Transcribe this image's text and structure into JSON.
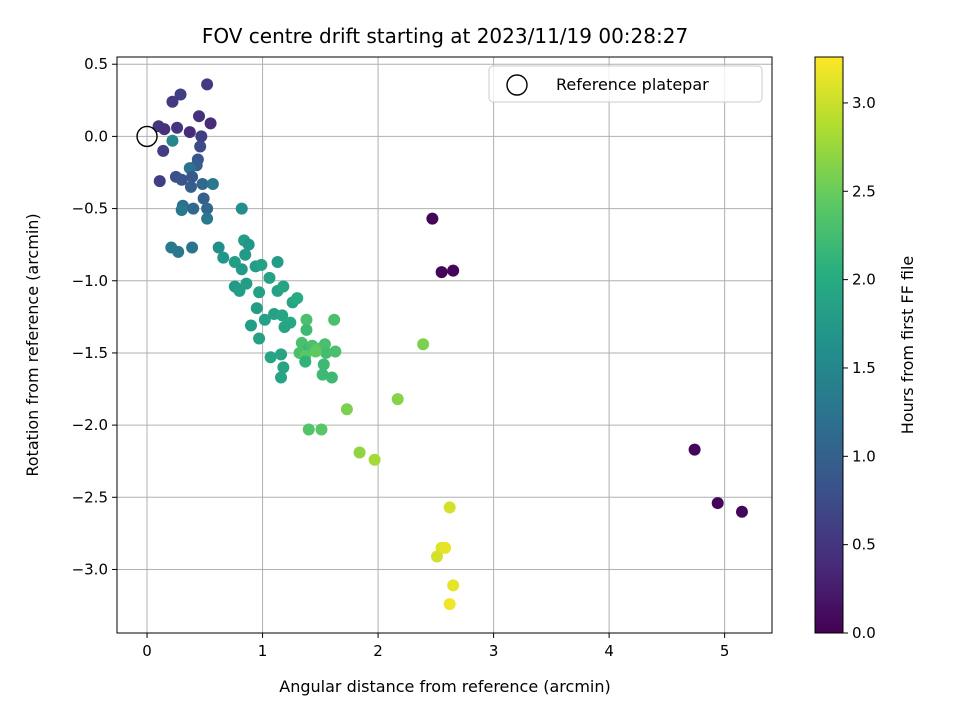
{
  "chart_data": {
    "type": "scatter",
    "title": "FOV centre drift starting at 2023/11/19 00:28:27",
    "xlabel": "Angular distance from reference (arcmin)",
    "ylabel": "Rotation from reference (arcmin)",
    "xlim": [
      -0.26,
      5.41
    ],
    "ylim": [
      -3.44,
      0.55
    ],
    "xticks": [
      0,
      1,
      2,
      3,
      4,
      5
    ],
    "xtick_labels": [
      "0",
      "1",
      "2",
      "3",
      "4",
      "5"
    ],
    "yticks": [
      0.5,
      0.0,
      -0.5,
      -1.0,
      -1.5,
      -2.0,
      -2.5,
      -3.0
    ],
    "ytick_labels": [
      "0.5",
      "0.0",
      "−0.5",
      "−1.0",
      "−1.5",
      "−2.0",
      "−2.5",
      "−3.0"
    ],
    "grid": true,
    "legend": {
      "position": "top-right",
      "entries": [
        {
          "label": "Reference platepar",
          "marker": "open-circle"
        }
      ]
    },
    "reference_point": {
      "x": 0,
      "y": 0
    },
    "colorbar": {
      "label": "Hours from first FF file",
      "colormap": "viridis",
      "range": [
        0.0,
        3.26
      ],
      "ticks": [
        0.0,
        0.5,
        1.0,
        1.5,
        2.0,
        2.5,
        3.0
      ],
      "tick_labels": [
        "0.0",
        "0.5",
        "1.0",
        "1.5",
        "2.0",
        "2.5",
        "3.0"
      ]
    },
    "points": [
      {
        "x": 0.1,
        "y": 0.07,
        "c": 0.5
      },
      {
        "x": 0.15,
        "y": 0.05,
        "c": 0.45
      },
      {
        "x": 0.22,
        "y": 0.24,
        "c": 0.55
      },
      {
        "x": 0.29,
        "y": 0.29,
        "c": 0.6
      },
      {
        "x": 0.52,
        "y": 0.36,
        "c": 0.55
      },
      {
        "x": 0.45,
        "y": 0.14,
        "c": 0.45
      },
      {
        "x": 0.55,
        "y": 0.09,
        "c": 0.4
      },
      {
        "x": 0.26,
        "y": 0.06,
        "c": 0.5
      },
      {
        "x": 0.37,
        "y": 0.03,
        "c": 0.4
      },
      {
        "x": 0.47,
        "y": 0.0,
        "c": 0.6
      },
      {
        "x": 0.22,
        "y": -0.03,
        "c": 1.5
      },
      {
        "x": 0.14,
        "y": -0.1,
        "c": 0.6
      },
      {
        "x": 0.46,
        "y": -0.07,
        "c": 0.75
      },
      {
        "x": 0.44,
        "y": -0.16,
        "c": 0.85
      },
      {
        "x": 0.43,
        "y": -0.2,
        "c": 0.95
      },
      {
        "x": 0.37,
        "y": -0.22,
        "c": 1.25
      },
      {
        "x": 0.11,
        "y": -0.31,
        "c": 0.6
      },
      {
        "x": 0.25,
        "y": -0.28,
        "c": 0.8
      },
      {
        "x": 0.3,
        "y": -0.3,
        "c": 0.85
      },
      {
        "x": 0.39,
        "y": -0.28,
        "c": 0.9
      },
      {
        "x": 0.48,
        "y": -0.33,
        "c": 1.1
      },
      {
        "x": 0.38,
        "y": -0.35,
        "c": 0.95
      },
      {
        "x": 0.57,
        "y": -0.33,
        "c": 1.3
      },
      {
        "x": 0.31,
        "y": -0.48,
        "c": 1.2
      },
      {
        "x": 0.3,
        "y": -0.51,
        "c": 1.3
      },
      {
        "x": 0.49,
        "y": -0.43,
        "c": 1.0
      },
      {
        "x": 0.52,
        "y": -0.5,
        "c": 1.1
      },
      {
        "x": 0.52,
        "y": -0.57,
        "c": 1.3
      },
      {
        "x": 0.4,
        "y": -0.5,
        "c": 1.1
      },
      {
        "x": 0.82,
        "y": -0.5,
        "c": 1.6
      },
      {
        "x": 0.21,
        "y": -0.77,
        "c": 1.3
      },
      {
        "x": 0.27,
        "y": -0.8,
        "c": 1.3
      },
      {
        "x": 0.39,
        "y": -0.77,
        "c": 1.25
      },
      {
        "x": 0.62,
        "y": -0.77,
        "c": 1.6
      },
      {
        "x": 0.66,
        "y": -0.84,
        "c": 1.7
      },
      {
        "x": 0.84,
        "y": -0.72,
        "c": 1.8
      },
      {
        "x": 0.88,
        "y": -0.75,
        "c": 1.7
      },
      {
        "x": 0.85,
        "y": -0.82,
        "c": 1.75
      },
      {
        "x": 0.76,
        "y": -0.87,
        "c": 1.8
      },
      {
        "x": 0.82,
        "y": -0.92,
        "c": 1.75
      },
      {
        "x": 0.94,
        "y": -0.9,
        "c": 1.8
      },
      {
        "x": 0.99,
        "y": -0.89,
        "c": 1.85
      },
      {
        "x": 1.13,
        "y": -0.87,
        "c": 1.8
      },
      {
        "x": 1.06,
        "y": -0.98,
        "c": 1.85
      },
      {
        "x": 0.86,
        "y": -1.02,
        "c": 1.8
      },
      {
        "x": 0.76,
        "y": -1.04,
        "c": 1.75
      },
      {
        "x": 0.8,
        "y": -1.07,
        "c": 1.8
      },
      {
        "x": 0.97,
        "y": -1.08,
        "c": 1.85
      },
      {
        "x": 1.13,
        "y": -1.07,
        "c": 1.85
      },
      {
        "x": 1.18,
        "y": -1.04,
        "c": 1.9
      },
      {
        "x": 1.26,
        "y": -1.15,
        "c": 1.9
      },
      {
        "x": 1.3,
        "y": -1.12,
        "c": 2.0
      },
      {
        "x": 0.95,
        "y": -1.19,
        "c": 1.8
      },
      {
        "x": 1.02,
        "y": -1.27,
        "c": 1.85
      },
      {
        "x": 0.9,
        "y": -1.31,
        "c": 1.8
      },
      {
        "x": 1.1,
        "y": -1.23,
        "c": 1.85
      },
      {
        "x": 1.17,
        "y": -1.24,
        "c": 1.9
      },
      {
        "x": 1.24,
        "y": -1.29,
        "c": 1.95
      },
      {
        "x": 1.19,
        "y": -1.32,
        "c": 1.9
      },
      {
        "x": 0.97,
        "y": -1.4,
        "c": 1.85
      },
      {
        "x": 1.38,
        "y": -1.27,
        "c": 2.3
      },
      {
        "x": 1.38,
        "y": -1.34,
        "c": 2.2
      },
      {
        "x": 1.62,
        "y": -1.27,
        "c": 2.3
      },
      {
        "x": 1.34,
        "y": -1.43,
        "c": 2.3
      },
      {
        "x": 1.4,
        "y": -1.47,
        "c": 2.2
      },
      {
        "x": 1.43,
        "y": -1.45,
        "c": 2.3
      },
      {
        "x": 1.48,
        "y": -1.47,
        "c": 2.4
      },
      {
        "x": 1.54,
        "y": -1.44,
        "c": 2.3
      },
      {
        "x": 1.55,
        "y": -1.5,
        "c": 2.25
      },
      {
        "x": 1.63,
        "y": -1.49,
        "c": 2.3
      },
      {
        "x": 1.32,
        "y": -1.5,
        "c": 2.3
      },
      {
        "x": 1.37,
        "y": -1.52,
        "c": 2.4
      },
      {
        "x": 1.46,
        "y": -1.49,
        "c": 2.45
      },
      {
        "x": 1.07,
        "y": -1.53,
        "c": 1.9
      },
      {
        "x": 1.16,
        "y": -1.51,
        "c": 1.9
      },
      {
        "x": 1.18,
        "y": -1.6,
        "c": 1.9
      },
      {
        "x": 1.37,
        "y": -1.56,
        "c": 2.1
      },
      {
        "x": 1.53,
        "y": -1.58,
        "c": 2.2
      },
      {
        "x": 1.52,
        "y": -1.65,
        "c": 2.2
      },
      {
        "x": 1.6,
        "y": -1.67,
        "c": 2.2
      },
      {
        "x": 1.16,
        "y": -1.67,
        "c": 1.9
      },
      {
        "x": 1.73,
        "y": -1.89,
        "c": 2.6
      },
      {
        "x": 1.4,
        "y": -2.03,
        "c": 2.35
      },
      {
        "x": 1.51,
        "y": -2.03,
        "c": 2.4
      },
      {
        "x": 1.84,
        "y": -2.19,
        "c": 2.7
      },
      {
        "x": 1.97,
        "y": -2.24,
        "c": 2.8
      },
      {
        "x": 2.17,
        "y": -1.82,
        "c": 2.65
      },
      {
        "x": 2.39,
        "y": -1.44,
        "c": 2.6
      },
      {
        "x": 2.47,
        "y": -0.57,
        "c": 0.05
      },
      {
        "x": 2.55,
        "y": -0.94,
        "c": 0.05
      },
      {
        "x": 2.65,
        "y": -0.93,
        "c": 0.05
      },
      {
        "x": 2.62,
        "y": -2.57,
        "c": 3.05
      },
      {
        "x": 2.55,
        "y": -2.85,
        "c": 3.1
      },
      {
        "x": 2.58,
        "y": -2.85,
        "c": 3.15
      },
      {
        "x": 2.51,
        "y": -2.91,
        "c": 3.05
      },
      {
        "x": 2.65,
        "y": -3.11,
        "c": 3.15
      },
      {
        "x": 2.62,
        "y": -3.24,
        "c": 3.2
      },
      {
        "x": 4.74,
        "y": -2.17,
        "c": 0.05
      },
      {
        "x": 4.94,
        "y": -2.54,
        "c": 0.05
      },
      {
        "x": 5.15,
        "y": -2.6,
        "c": 0.05
      }
    ]
  }
}
